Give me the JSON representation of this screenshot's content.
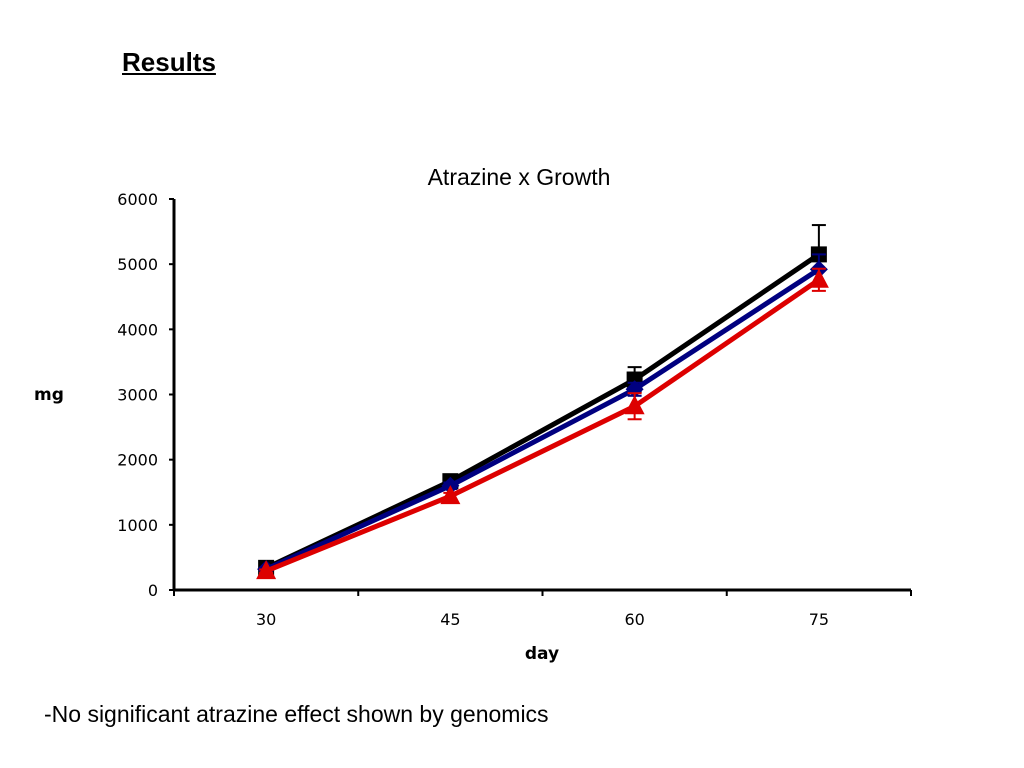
{
  "slide": {
    "heading": "Results",
    "note": "-No significant atrazine effect shown by genomics"
  },
  "chart_data": {
    "type": "line",
    "title": "Atrazine x Growth",
    "xlabel": "day",
    "ylabel": "mg",
    "categories": [
      "30",
      "45",
      "60",
      "75"
    ],
    "ylim": [
      0,
      6000
    ],
    "yticks": [
      0,
      1000,
      2000,
      3000,
      4000,
      5000,
      6000
    ],
    "grid": false,
    "series": [
      {
        "color": "#000000",
        "marker": "square",
        "values": [
          340,
          1670,
          3230,
          5150
        ],
        "error": [
          30,
          60,
          190,
          450
        ]
      },
      {
        "color": "#000080",
        "marker": "diamond",
        "values": [
          320,
          1600,
          3080,
          4920
        ],
        "error": [
          25,
          50,
          100,
          230
        ]
      },
      {
        "color": "#dd0000",
        "marker": "triangle",
        "values": [
          290,
          1440,
          2820,
          4760
        ],
        "error": [
          25,
          50,
          200,
          170
        ]
      }
    ]
  }
}
